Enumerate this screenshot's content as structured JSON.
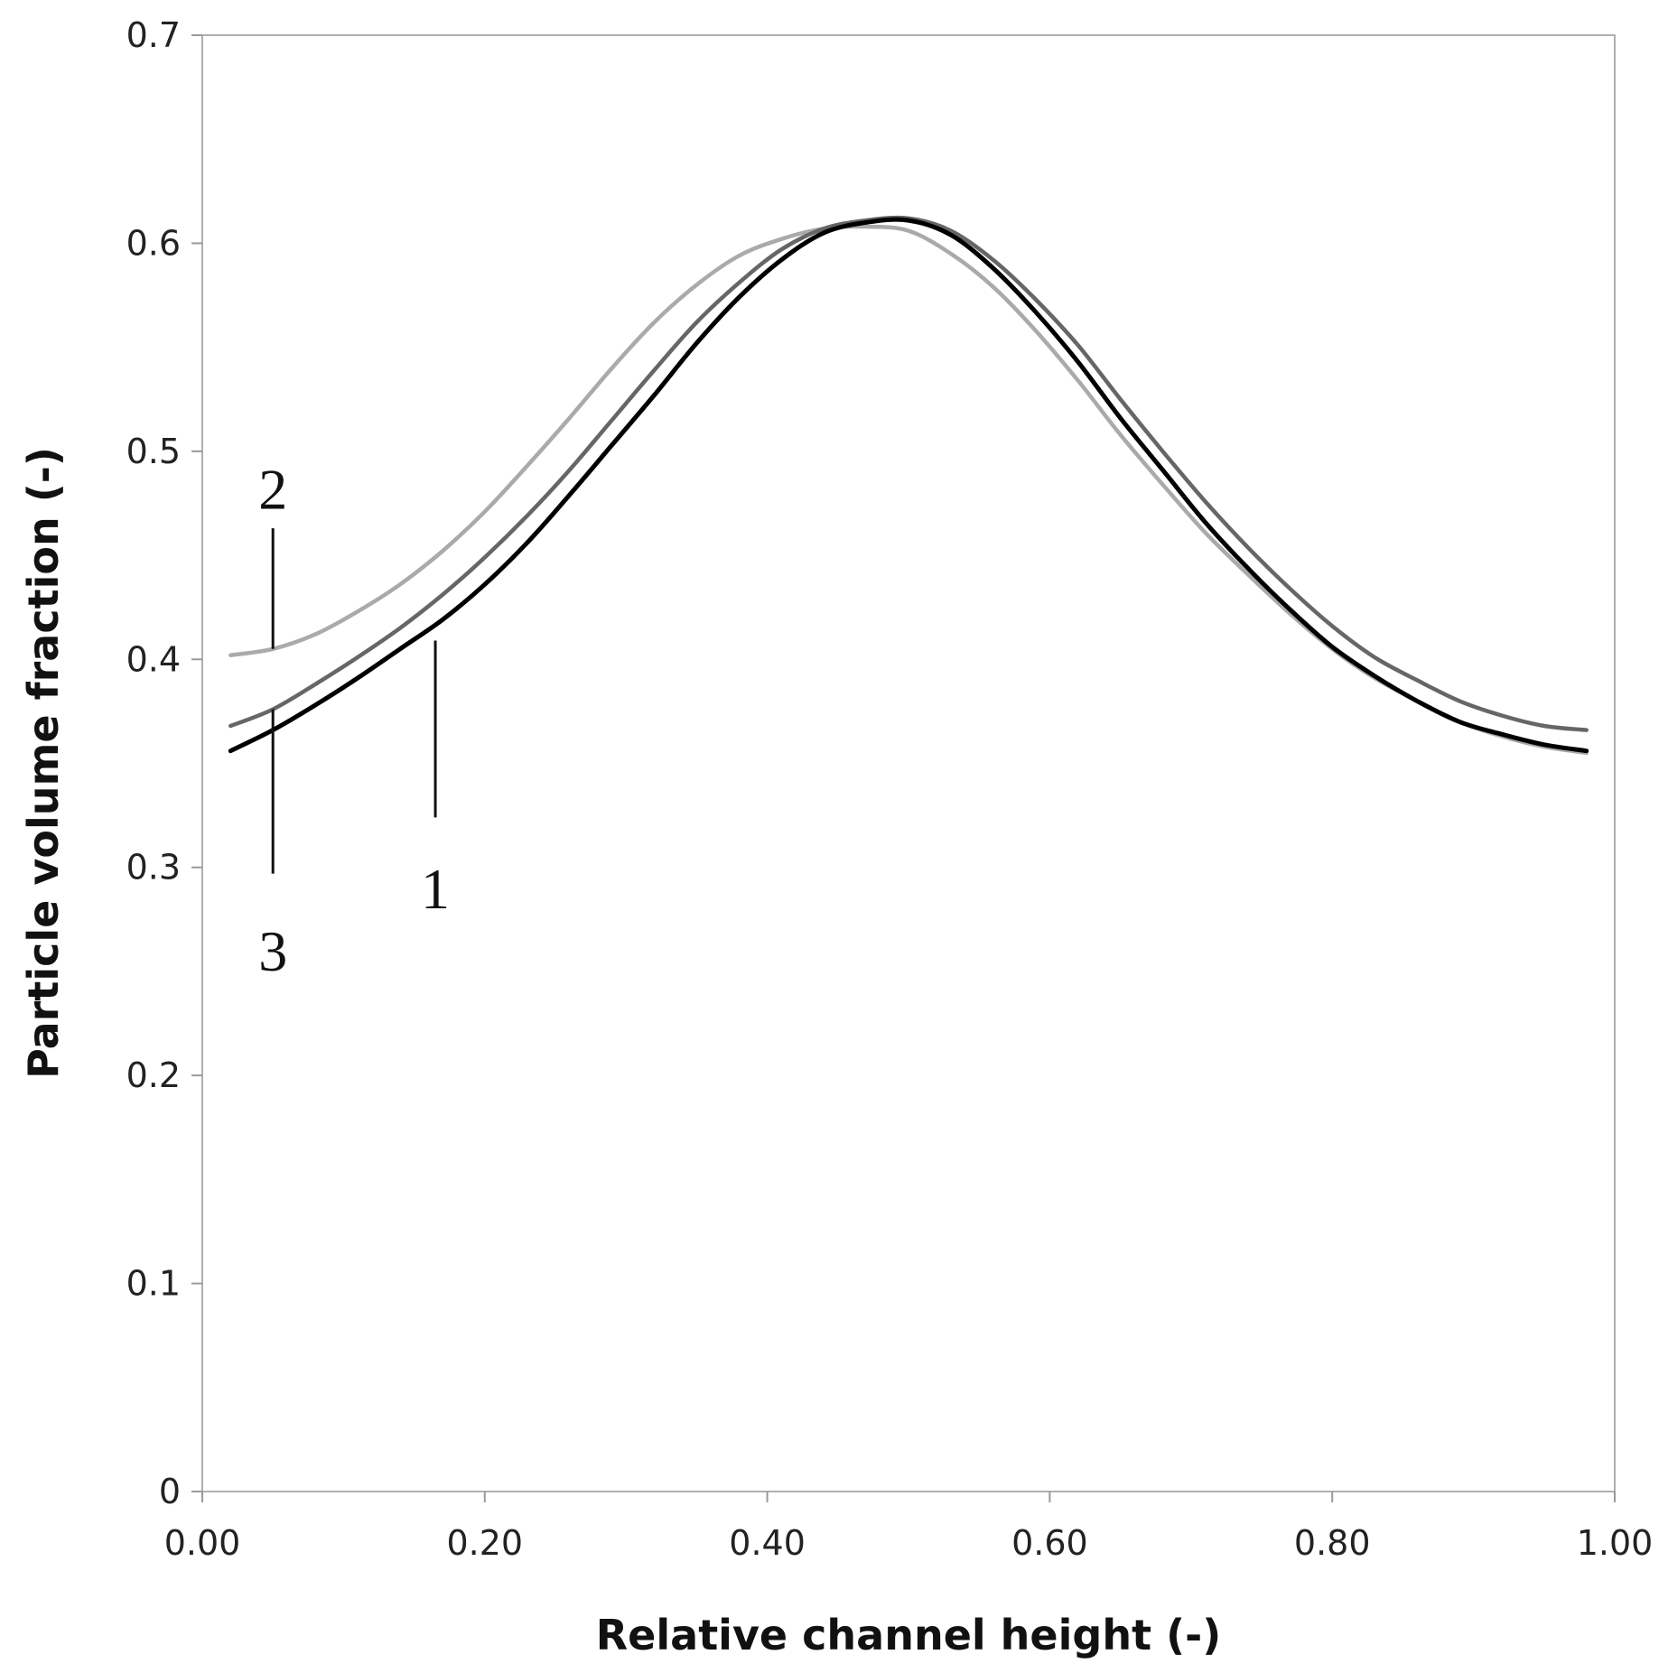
{
  "chart_data": {
    "type": "line",
    "xlabel": "Relative channel height (-)",
    "ylabel": "Particle volume fraction (-)",
    "xlim": [
      0,
      1
    ],
    "ylim": [
      0,
      0.7
    ],
    "x_ticks": [
      "0.00",
      "0.20",
      "0.40",
      "0.60",
      "0.80",
      "1.00"
    ],
    "y_ticks": [
      "0",
      "0.1",
      "0.2",
      "0.3",
      "0.4",
      "0.5",
      "0.6",
      "0.7"
    ],
    "grid": false,
    "series": [
      {
        "name": "1",
        "color": "#000000",
        "x": [
          0.02,
          0.05,
          0.08,
          0.11,
          0.14,
          0.17,
          0.2,
          0.23,
          0.26,
          0.29,
          0.32,
          0.35,
          0.38,
          0.41,
          0.44,
          0.47,
          0.5,
          0.53,
          0.56,
          0.59,
          0.62,
          0.65,
          0.68,
          0.71,
          0.74,
          0.77,
          0.8,
          0.83,
          0.86,
          0.89,
          0.92,
          0.95,
          0.98
        ],
        "y": [
          0.356,
          0.366,
          0.378,
          0.391,
          0.405,
          0.419,
          0.436,
          0.456,
          0.479,
          0.503,
          0.527,
          0.552,
          0.574,
          0.592,
          0.605,
          0.61,
          0.611,
          0.604,
          0.588,
          0.567,
          0.543,
          0.516,
          0.491,
          0.466,
          0.444,
          0.424,
          0.406,
          0.392,
          0.38,
          0.37,
          0.364,
          0.359,
          0.356
        ]
      },
      {
        "name": "2",
        "color": "#aaaaaa",
        "x": [
          0.02,
          0.05,
          0.08,
          0.11,
          0.14,
          0.17,
          0.2,
          0.23,
          0.26,
          0.29,
          0.32,
          0.35,
          0.38,
          0.41,
          0.44,
          0.47,
          0.5,
          0.53,
          0.56,
          0.59,
          0.62,
          0.65,
          0.68,
          0.71,
          0.74,
          0.77,
          0.8,
          0.83,
          0.86,
          0.89,
          0.92,
          0.95,
          0.98
        ],
        "y": [
          0.402,
          0.405,
          0.412,
          0.423,
          0.436,
          0.452,
          0.471,
          0.493,
          0.516,
          0.54,
          0.562,
          0.58,
          0.594,
          0.602,
          0.607,
          0.608,
          0.606,
          0.595,
          0.579,
          0.558,
          0.534,
          0.508,
          0.484,
          0.461,
          0.441,
          0.422,
          0.405,
          0.391,
          0.38,
          0.37,
          0.363,
          0.358,
          0.355
        ]
      },
      {
        "name": "3",
        "color": "#666666",
        "x": [
          0.02,
          0.05,
          0.08,
          0.11,
          0.14,
          0.17,
          0.2,
          0.23,
          0.26,
          0.29,
          0.32,
          0.35,
          0.38,
          0.41,
          0.44,
          0.47,
          0.5,
          0.53,
          0.56,
          0.59,
          0.62,
          0.65,
          0.68,
          0.71,
          0.74,
          0.77,
          0.8,
          0.83,
          0.86,
          0.89,
          0.92,
          0.95,
          0.98
        ],
        "y": [
          0.368,
          0.376,
          0.388,
          0.401,
          0.415,
          0.431,
          0.449,
          0.469,
          0.491,
          0.515,
          0.539,
          0.562,
          0.581,
          0.597,
          0.607,
          0.611,
          0.612,
          0.606,
          0.592,
          0.573,
          0.551,
          0.525,
          0.5,
          0.476,
          0.454,
          0.434,
          0.416,
          0.401,
          0.39,
          0.38,
          0.373,
          0.368,
          0.366
        ]
      }
    ],
    "annotations": [
      {
        "label": "1",
        "series": "1",
        "x": 0.165,
        "leader_y": [
          0.409,
          0.324
        ],
        "text_y": 0.29
      },
      {
        "label": "2",
        "series": "2",
        "x": 0.05,
        "leader_y": [
          0.463,
          0.405
        ],
        "text_y": 0.482
      },
      {
        "label": "3",
        "series": "3",
        "x": 0.05,
        "leader_y": [
          0.376,
          0.297
        ],
        "text_y": 0.26
      }
    ]
  }
}
